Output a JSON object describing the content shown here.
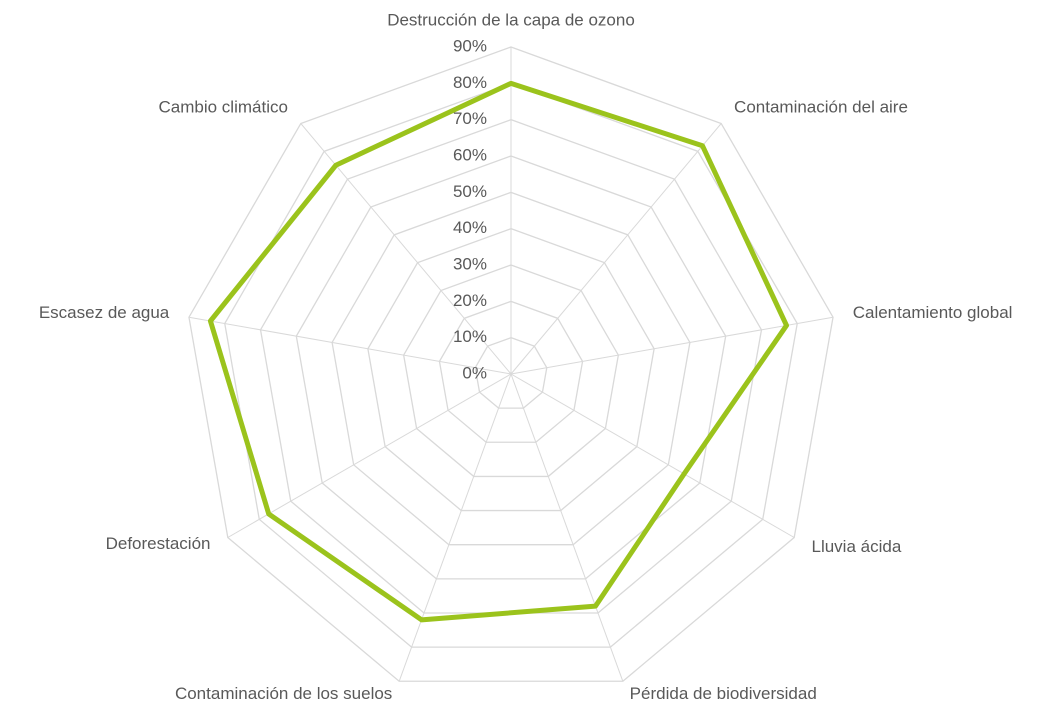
{
  "chart_data": {
    "type": "radar",
    "categories": [
      "Destrucción de la capa de ozono",
      "Contaminación del aire",
      "Calentamiento global",
      "Lluvia ácida",
      "Pérdida de biodiversidad",
      "Contaminación de los suelos",
      "Deforestación",
      "Escasez de agua",
      "Cambio climático"
    ],
    "values": [
      80,
      82,
      77,
      55,
      68,
      72,
      77,
      84,
      75
    ],
    "color": "#9bc31c",
    "ylim": [
      0,
      90
    ],
    "yticks": [
      {
        "value": 0,
        "label": "0%"
      },
      {
        "value": 10,
        "label": "10%"
      },
      {
        "value": 20,
        "label": "20%"
      },
      {
        "value": 30,
        "label": "30%"
      },
      {
        "value": 40,
        "label": "40%"
      },
      {
        "value": 50,
        "label": "50%"
      },
      {
        "value": 60,
        "label": "60%"
      },
      {
        "value": 70,
        "label": "70%"
      },
      {
        "value": 80,
        "label": "80%"
      },
      {
        "value": 90,
        "label": "90%"
      }
    ],
    "grid": true
  }
}
